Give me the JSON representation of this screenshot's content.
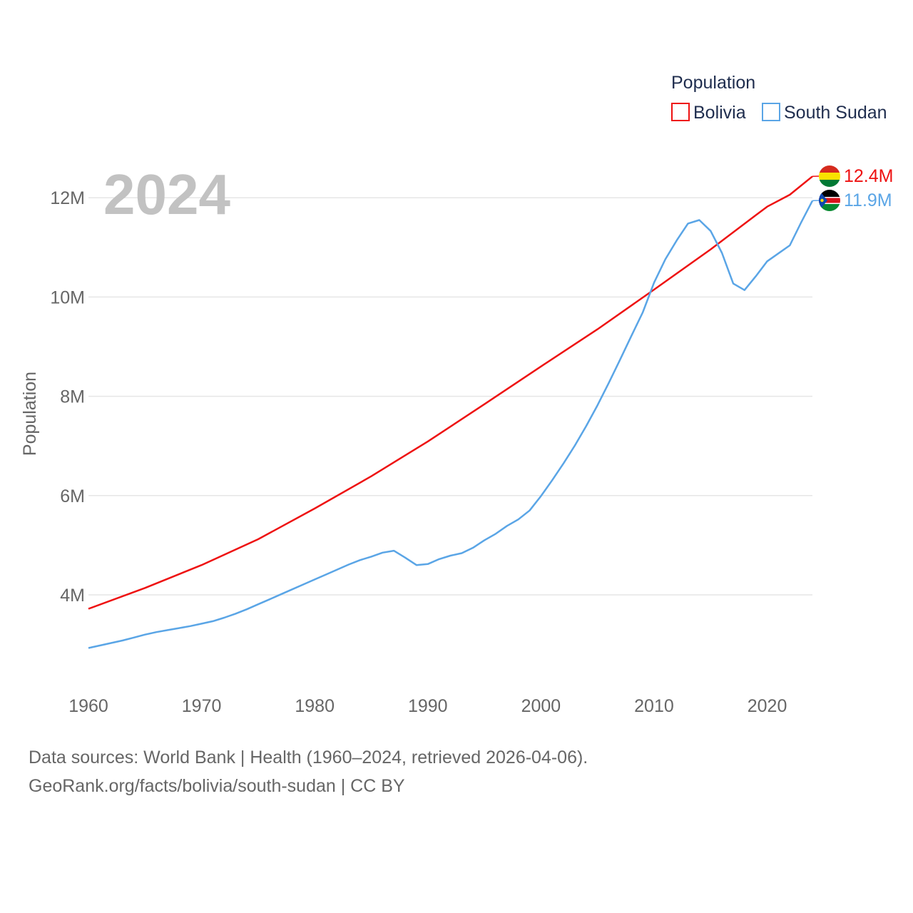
{
  "colors": {
    "bolivia": "#ee1111",
    "south_sudan": "#5aa5e6",
    "year_watermark": "#c2c2c2",
    "axis_text": "#666666",
    "legend_text": "#1f2d4e",
    "grid": "#e6e6e6"
  },
  "chart_data": {
    "type": "line",
    "title": "",
    "xlabel": "",
    "ylabel": "Population",
    "year_label": "2024",
    "xlim": [
      1960,
      2024
    ],
    "ylim": [
      2000000,
      13000000
    ],
    "x_ticks": [
      1960,
      1970,
      1980,
      1990,
      2000,
      2010,
      2020
    ],
    "x_tick_labels": [
      "1960",
      "1970",
      "1980",
      "1990",
      "2000",
      "2010",
      "2020"
    ],
    "y_ticks": [
      4000000,
      6000000,
      8000000,
      10000000,
      12000000
    ],
    "y_tick_labels": [
      "4M",
      "6M",
      "8M",
      "10M",
      "12M"
    ],
    "legend": {
      "title": "Population",
      "position": "top-right",
      "entries": [
        "Bolivia",
        "South Sudan"
      ]
    },
    "series": [
      {
        "name": "Bolivia",
        "color": "#ee1111",
        "end_label": "12.4M",
        "flag_icon": "bolivia-flag-icon",
        "points": [
          [
            1960,
            3720000
          ],
          [
            1965,
            4140000
          ],
          [
            1970,
            4600000
          ],
          [
            1975,
            5120000
          ],
          [
            1980,
            5740000
          ],
          [
            1985,
            6390000
          ],
          [
            1990,
            7090000
          ],
          [
            1995,
            7840000
          ],
          [
            2000,
            8600000
          ],
          [
            2005,
            9350000
          ],
          [
            2010,
            10150000
          ],
          [
            2015,
            10960000
          ],
          [
            2019,
            11650000
          ],
          [
            2020,
            11820000
          ],
          [
            2022,
            12060000
          ],
          [
            2024,
            12430000
          ]
        ]
      },
      {
        "name": "South Sudan",
        "color": "#5aa5e6",
        "end_label": "11.9M",
        "flag_icon": "south-sudan-flag-icon",
        "points": [
          [
            1960,
            2930000
          ],
          [
            1961,
            2980000
          ],
          [
            1962,
            3030000
          ],
          [
            1963,
            3080000
          ],
          [
            1964,
            3140000
          ],
          [
            1965,
            3200000
          ],
          [
            1966,
            3250000
          ],
          [
            1967,
            3290000
          ],
          [
            1968,
            3330000
          ],
          [
            1969,
            3370000
          ],
          [
            1970,
            3420000
          ],
          [
            1971,
            3470000
          ],
          [
            1972,
            3540000
          ],
          [
            1973,
            3620000
          ],
          [
            1974,
            3710000
          ],
          [
            1975,
            3810000
          ],
          [
            1976,
            3910000
          ],
          [
            1977,
            4010000
          ],
          [
            1978,
            4110000
          ],
          [
            1979,
            4210000
          ],
          [
            1980,
            4310000
          ],
          [
            1981,
            4410000
          ],
          [
            1982,
            4510000
          ],
          [
            1983,
            4610000
          ],
          [
            1984,
            4700000
          ],
          [
            1985,
            4770000
          ],
          [
            1986,
            4850000
          ],
          [
            1987,
            4890000
          ],
          [
            1988,
            4750000
          ],
          [
            1989,
            4600000
          ],
          [
            1990,
            4620000
          ],
          [
            1991,
            4720000
          ],
          [
            1992,
            4790000
          ],
          [
            1993,
            4840000
          ],
          [
            1994,
            4950000
          ],
          [
            1995,
            5100000
          ],
          [
            1996,
            5230000
          ],
          [
            1997,
            5390000
          ],
          [
            1998,
            5520000
          ],
          [
            1999,
            5700000
          ],
          [
            2000,
            5990000
          ],
          [
            2001,
            6310000
          ],
          [
            2002,
            6650000
          ],
          [
            2003,
            7010000
          ],
          [
            2004,
            7400000
          ],
          [
            2005,
            7820000
          ],
          [
            2006,
            8270000
          ],
          [
            2007,
            8740000
          ],
          [
            2008,
            9220000
          ],
          [
            2009,
            9690000
          ],
          [
            2010,
            10290000
          ],
          [
            2011,
            10760000
          ],
          [
            2012,
            11140000
          ],
          [
            2013,
            11480000
          ],
          [
            2014,
            11550000
          ],
          [
            2015,
            11330000
          ],
          [
            2016,
            10890000
          ],
          [
            2017,
            10270000
          ],
          [
            2018,
            10140000
          ],
          [
            2019,
            10420000
          ],
          [
            2020,
            10720000
          ],
          [
            2021,
            10880000
          ],
          [
            2022,
            11040000
          ],
          [
            2023,
            11500000
          ],
          [
            2024,
            11940000
          ]
        ]
      }
    ]
  },
  "footer": {
    "line1": "Data sources: World Bank | Health (1960–2024, retrieved 2026-04-06).",
    "line2": "GeoRank.org/facts/bolivia/south-sudan | CC BY"
  }
}
